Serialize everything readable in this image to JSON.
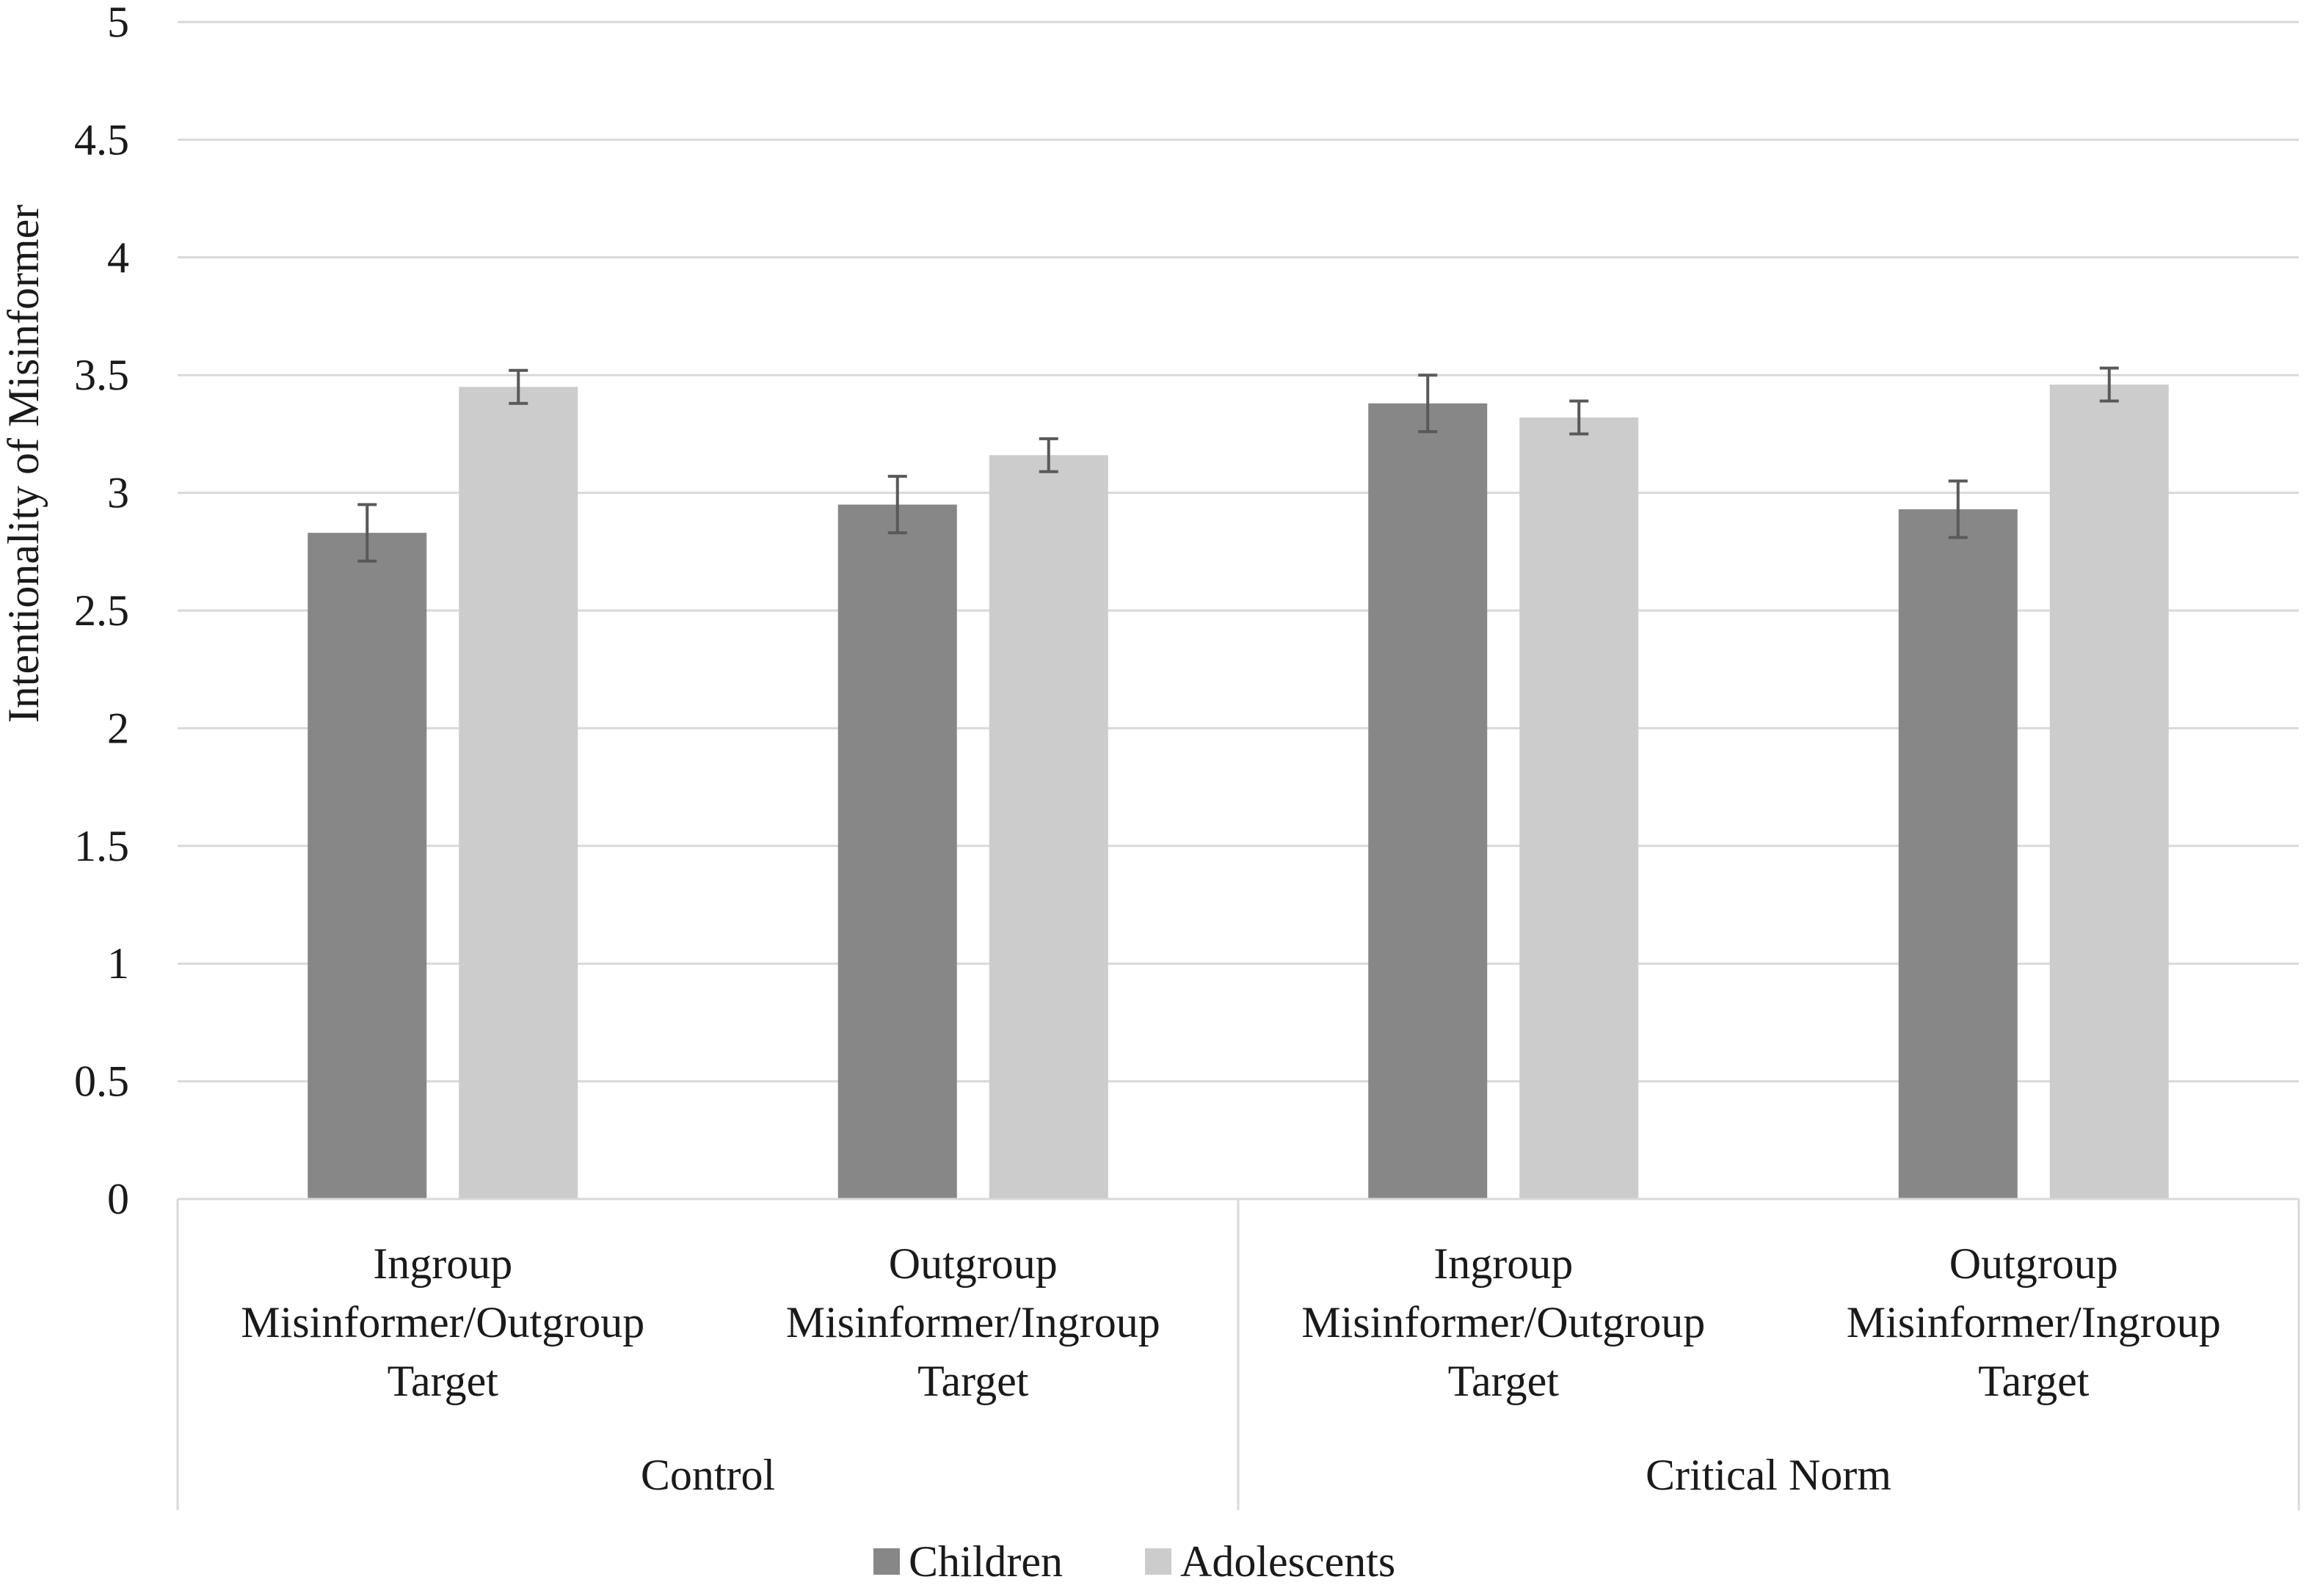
{
  "chart_data": {
    "type": "bar",
    "title": "",
    "ylabel": "Intentionality of Misinformer",
    "xlabel": "",
    "ylim": [
      0,
      5
    ],
    "yticks": [
      0,
      0.5,
      1,
      1.5,
      2,
      2.5,
      3,
      3.5,
      4,
      4.5,
      5
    ],
    "ytick_labels": [
      "0",
      "0.5",
      "1",
      "1.5",
      "2",
      "2.5",
      "3",
      "3.5",
      "4",
      "4.5",
      "5"
    ],
    "grid": true,
    "groups": [
      {
        "label": "Control",
        "categories": [
          0,
          1
        ]
      },
      {
        "label": "Critical Norm",
        "categories": [
          2,
          3
        ]
      }
    ],
    "categories": [
      [
        "Ingroup",
        "Misinformer/Outgroup",
        "Target"
      ],
      [
        "Outgroup",
        "Misinformer/Ingroup",
        "Target"
      ],
      [
        "Ingroup",
        "Misinformer/Outgroup",
        "Target"
      ],
      [
        "Outgroup",
        "Misinformer/Ingroup",
        "Target"
      ]
    ],
    "series": [
      {
        "name": "Children",
        "color": "#878787",
        "values": [
          2.83,
          2.95,
          3.38,
          2.93
        ],
        "error": [
          0.12,
          0.12,
          0.12,
          0.12
        ]
      },
      {
        "name": "Adolescents",
        "color": "#cccccc",
        "values": [
          3.45,
          3.16,
          3.32,
          3.46
        ],
        "error": [
          0.07,
          0.07,
          0.07,
          0.07
        ]
      }
    ],
    "legend_position": "bottom-center"
  }
}
